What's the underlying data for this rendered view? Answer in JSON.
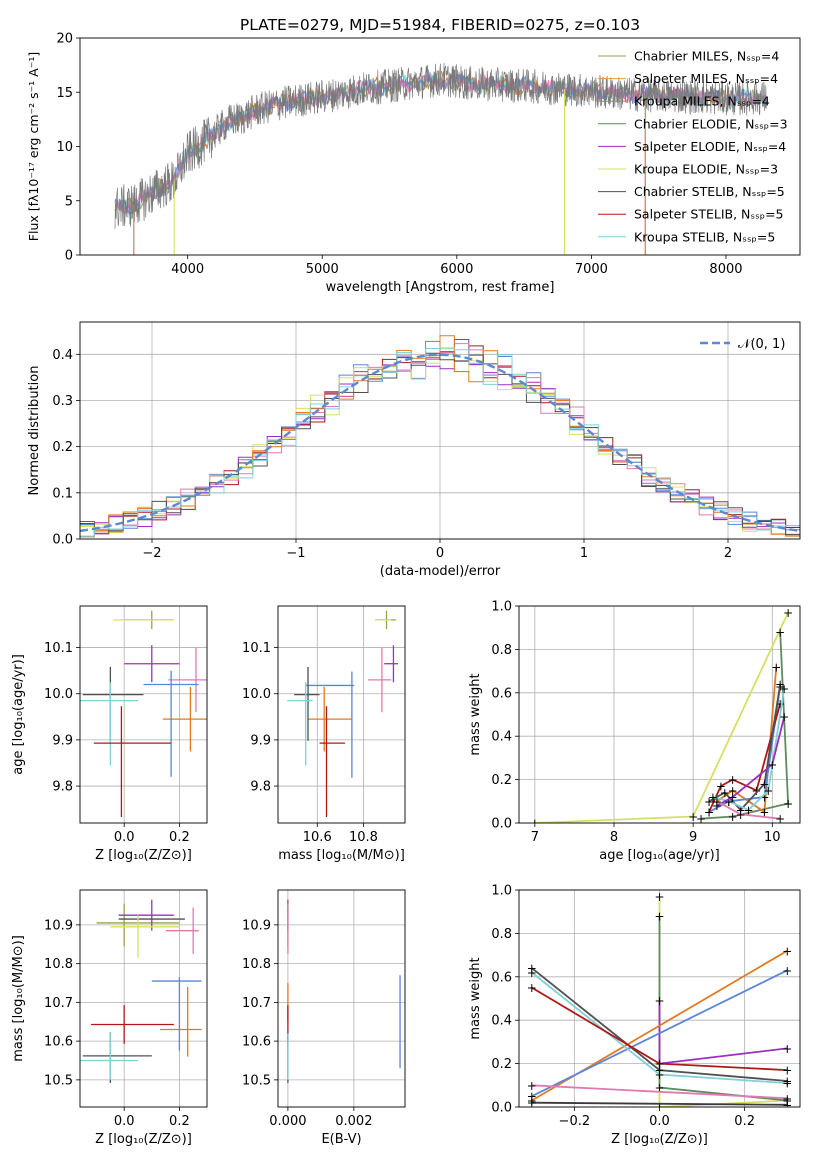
{
  "figure": {
    "title": "PLATE=0279, MJD=51984, FIBERID=0275, z=0.103"
  },
  "colors": {
    "Chabrier MILES": "#9aa24a",
    "Salpeter MILES": "#d6a23a",
    "Kroupa MILES": "#c9792a",
    "Chabrier ELODIE": "#5f8a5f",
    "Salpeter ELODIE": "#9b30c0",
    "Kroupa ELODIE": "#d6e060",
    "Chabrier STELIB": "#505050",
    "Salpeter STELIB": "#b01818",
    "Kroupa STELIB": "#7fd0d8",
    "extra_blue": "#5b86d8",
    "extra_orange": "#e07a20",
    "extra_pink": "#e07ab0",
    "extra_yellowgreen": "#c8e050",
    "normal_curve": "#5b8ad0"
  },
  "chart_data": [
    {
      "id": "spectrum",
      "type": "line",
      "title": "PLATE=0279, MJD=51984, FIBERID=0275, z=0.103",
      "xlabel": "wavelength [Angstrom, rest frame]",
      "ylabel": "Flux [fλ10⁻¹⁷ erg cm⁻² s⁻¹ A⁻¹]",
      "xlim": [
        3200,
        8550
      ],
      "ylim": [
        0,
        20
      ],
      "xticks": [
        "4000",
        "5000",
        "6000",
        "7000",
        "8000"
      ],
      "yticks": [
        "0",
        "5",
        "10",
        "15",
        "20"
      ],
      "legend_placement": "top-right",
      "legend": [
        {
          "label": "Chabrier MILES, Nₛₛₚ=4",
          "color": "#9aa24a"
        },
        {
          "label": "Salpeter MILES, Nₛₛₚ=4",
          "color": "#d6a23a"
        },
        {
          "label": "Kroupa MILES, Nₛₛₚ=4",
          "color": "#c9792a"
        },
        {
          "label": "Chabrier ELODIE, Nₛₛₚ=3",
          "color": "#5f8a5f"
        },
        {
          "label": "Salpeter ELODIE, Nₛₛₚ=4",
          "color": "#9b30c0"
        },
        {
          "label": "Kroupa ELODIE, Nₛₛₚ=3",
          "color": "#d6e060"
        },
        {
          "label": "Chabrier STELIB, Nₛₛₚ=5",
          "color": "#505050"
        },
        {
          "label": "Salpeter STELIB, Nₛₛₚ=5",
          "color": "#b01818"
        },
        {
          "label": "Kroupa STELIB, Nₛₛₚ=5",
          "color": "#7fd0d8"
        }
      ],
      "data_continuum": {
        "x": [
          3450,
          3600,
          3800,
          3900,
          4000,
          4100,
          4200,
          4300,
          4400,
          4500,
          4700,
          4900,
          5100,
          5300,
          5500,
          5700,
          5900,
          6100,
          6300,
          6500,
          6700,
          6900,
          7100,
          7300,
          7500,
          7700,
          7900,
          8100,
          8300
        ],
        "y": [
          4.3,
          4.6,
          6.2,
          6.8,
          9.3,
          10.2,
          11.2,
          12.3,
          12.6,
          13.3,
          14.0,
          14.4,
          14.8,
          15.3,
          15.6,
          15.9,
          16.2,
          15.8,
          15.7,
          15.6,
          15.4,
          15.2,
          15.0,
          14.8,
          14.7,
          14.6,
          14.5,
          14.4,
          14.5
        ]
      }
    },
    {
      "id": "residuals",
      "type": "step",
      "xlabel": "(data-model)/error",
      "ylabel": "Normed distribution",
      "xlim": [
        -2.5,
        2.5
      ],
      "ylim": [
        0,
        0.47
      ],
      "xticks": [
        "−2",
        "−1",
        "0",
        "1",
        "2"
      ],
      "yticks": [
        "0.0",
        "0.1",
        "0.2",
        "0.3",
        "0.4"
      ],
      "legend": [
        {
          "label": "𝒩(0, 1)",
          "color": "#5b8ad0"
        }
      ],
      "legend_placement": "top-right",
      "bin_width": 0.1
    },
    {
      "id": "age-vs-Z",
      "type": "errorbar",
      "xlabel": "Z [log₁₀(Z/Z⊙)]",
      "ylabel": "age  [log₁₀(age/yr)]",
      "xlim": [
        -0.16,
        0.3
      ],
      "ylim": [
        9.72,
        10.19
      ],
      "xticks": [
        "0.0",
        "0.2"
      ],
      "yticks": [
        "9.8",
        "9.9",
        "10.0",
        "10.1"
      ],
      "series": [
        {
          "color": "#9aa24a",
          "x": 0.1,
          "y": 10.16,
          "xerr": [
            0.1,
            0.08
          ],
          "yerr": [
            0.02,
            0.02
          ]
        },
        {
          "color": "#d6e060",
          "x": 0.08,
          "y": 10.16,
          "xerr": [
            0.12,
            0.1
          ],
          "yerr": [
            0.0,
            0.0
          ]
        },
        {
          "color": "#9b30c0",
          "x": 0.1,
          "y": 10.065,
          "xerr": [
            0.1,
            0.1
          ],
          "yerr": [
            0.04,
            0.04
          ]
        },
        {
          "color": "#e07ab0",
          "x": 0.26,
          "y": 10.03,
          "xerr": [
            0.1,
            0.1
          ],
          "yerr": [
            0.07,
            0.07
          ]
        },
        {
          "color": "#e07a20",
          "x": 0.24,
          "y": 9.945,
          "xerr": [
            0.1,
            0.08
          ],
          "yerr": [
            0.07,
            0.07
          ]
        },
        {
          "color": "#5b86d8",
          "x": 0.17,
          "y": 10.02,
          "xerr": [
            0.1,
            0.1
          ],
          "yerr": [
            0.2,
            0.03
          ]
        },
        {
          "color": "#505050",
          "x": -0.05,
          "y": 9.998,
          "xerr": [
            0.1,
            0.12
          ],
          "yerr": [
            0.1,
            0.06
          ]
        },
        {
          "color": "#7fd0d8",
          "x": -0.05,
          "y": 9.985,
          "xerr": [
            0.12,
            0.1
          ],
          "yerr": [
            0.14,
            0.04
          ]
        },
        {
          "color": "#b01818",
          "x": -0.01,
          "y": 9.893,
          "xerr": [
            0.1,
            0.18
          ],
          "yerr": [
            0.16,
            0.08
          ]
        }
      ]
    },
    {
      "id": "age-vs-mass",
      "type": "errorbar",
      "xlabel": "mass [log₁₀(M/M⊙)]",
      "ylabel": "",
      "xlim": [
        10.43,
        10.98
      ],
      "ylim": [
        9.72,
        10.19
      ],
      "xticks": [
        "10.6",
        "10.8"
      ],
      "yticks": [
        "9.8",
        "9.9",
        "10.0",
        "10.1"
      ],
      "series": [
        {
          "color": "#9aa24a",
          "x": 10.9,
          "y": 10.16,
          "xerr": [
            0.05,
            0.04
          ],
          "yerr": [
            0.02,
            0.02
          ]
        },
        {
          "color": "#d6e060",
          "x": 10.89,
          "y": 10.16,
          "xerr": [
            0.04,
            0.03
          ],
          "yerr": [
            0.0,
            0.0
          ]
        },
        {
          "color": "#9b30c0",
          "x": 10.93,
          "y": 10.065,
          "xerr": [
            0.04,
            0.02
          ],
          "yerr": [
            0.04,
            0.04
          ]
        },
        {
          "color": "#e07ab0",
          "x": 10.88,
          "y": 10.03,
          "xerr": [
            0.06,
            0.04
          ],
          "yerr": [
            0.07,
            0.07
          ]
        },
        {
          "color": "#e07a20",
          "x": 10.63,
          "y": 9.945,
          "xerr": [
            0.07,
            0.12
          ],
          "yerr": [
            0.07,
            0.07
          ]
        },
        {
          "color": "#5b86d8",
          "x": 10.75,
          "y": 10.018,
          "xerr": [
            0.2,
            0.01
          ],
          "yerr": [
            0.2,
            0.03
          ]
        },
        {
          "color": "#505050",
          "x": 10.56,
          "y": 9.998,
          "xerr": [
            0.06,
            0.05
          ],
          "yerr": [
            0.1,
            0.06
          ]
        },
        {
          "color": "#7fd0d8",
          "x": 10.55,
          "y": 9.985,
          "xerr": [
            0.08,
            0.03
          ],
          "yerr": [
            0.14,
            0.04
          ]
        },
        {
          "color": "#b01818",
          "x": 10.64,
          "y": 9.893,
          "xerr": [
            0.03,
            0.08
          ],
          "yerr": [
            0.16,
            0.08
          ]
        }
      ]
    },
    {
      "id": "mass-weight-vs-age",
      "type": "line",
      "xlabel": "age  [log₁₀(age/yr)]",
      "ylabel": "mass weight",
      "xlim": [
        6.8,
        10.35
      ],
      "ylim": [
        0,
        1.0
      ],
      "xticks": [
        "7",
        "8",
        "9",
        "10"
      ],
      "yticks": [
        "0.0",
        "0.2",
        "0.4",
        "0.6",
        "0.8",
        "1.0"
      ]
    },
    {
      "id": "mass-vs-Z",
      "type": "errorbar",
      "xlabel": "Z [log₁₀(Z/Z⊙)]",
      "ylabel": "mass [log₁₀(M/M⊙)]",
      "xlim": [
        -0.16,
        0.3
      ],
      "ylim": [
        10.43,
        10.99
      ],
      "xticks": [
        "0.0",
        "0.2"
      ],
      "yticks": [
        "10.5",
        "10.6",
        "10.7",
        "10.8",
        "10.9"
      ],
      "series": [
        {
          "color": "#9aa24a",
          "x": 0.0,
          "y": 10.905,
          "xerr": [
            0.1,
            0.2
          ],
          "yerr": [
            0.06,
            0.05
          ]
        },
        {
          "color": "#9b30c0",
          "x": 0.1,
          "y": 10.925,
          "xerr": [
            0.12,
            0.08
          ],
          "yerr": [
            0.04,
            0.04
          ]
        },
        {
          "color": "#505050",
          "x": 0.1,
          "y": 10.915,
          "xerr": [
            0.12,
            0.12
          ],
          "yerr": [
            0.0,
            0.0
          ]
        },
        {
          "color": "#d6e060",
          "x": 0.05,
          "y": 10.895,
          "xerr": [
            0.1,
            0.15
          ],
          "yerr": [
            0.08,
            0.03
          ]
        },
        {
          "color": "#e07ab0",
          "x": 0.25,
          "y": 10.885,
          "xerr": [
            0.1,
            0.02
          ],
          "yerr": [
            0.06,
            0.06
          ]
        },
        {
          "color": "#5b86d8",
          "x": 0.2,
          "y": 10.755,
          "xerr": [
            0.1,
            0.08
          ],
          "yerr": [
            0.18,
            0.01
          ]
        },
        {
          "color": "#e07a20",
          "x": 0.23,
          "y": 10.63,
          "xerr": [
            0.1,
            0.05
          ],
          "yerr": [
            0.07,
            0.11
          ]
        },
        {
          "color": "#b01818",
          "x": 0.0,
          "y": 10.643,
          "xerr": [
            0.12,
            0.18
          ],
          "yerr": [
            0.05,
            0.05
          ]
        },
        {
          "color": "#505050",
          "x": -0.05,
          "y": 10.562,
          "xerr": [
            0.1,
            0.15
          ],
          "yerr": [
            0.07,
            0.06
          ]
        },
        {
          "color": "#7fd0d8",
          "x": -0.05,
          "y": 10.55,
          "xerr": [
            0.12,
            0.1
          ],
          "yerr": [
            0.05,
            0.07
          ]
        }
      ]
    },
    {
      "id": "mass-vs-EBV",
      "type": "errorbar",
      "xlabel": "E(B-V)",
      "ylabel": "",
      "xlim": [
        -0.0003,
        0.00355
      ],
      "ylim": [
        10.43,
        10.99
      ],
      "xticks": [
        "0.000",
        "0.002"
      ],
      "yticks": [
        "10.5",
        "10.6",
        "10.7",
        "10.8",
        "10.9"
      ],
      "series": [
        {
          "color": "#9b30c0",
          "x": 0.0,
          "y": 10.925,
          "xerr": [
            0,
            0
          ],
          "yerr": [
            0.04,
            0.04
          ]
        },
        {
          "color": "#9aa24a",
          "x": 0.0,
          "y": 10.905,
          "xerr": [
            0,
            0
          ],
          "yerr": [
            0.06,
            0.05
          ]
        },
        {
          "color": "#e07ab0",
          "x": 0.0,
          "y": 10.885,
          "xerr": [
            0,
            0
          ],
          "yerr": [
            0.06,
            0.06
          ]
        },
        {
          "color": "#e07a20",
          "x": 0.0,
          "y": 10.7,
          "xerr": [
            0,
            0
          ],
          "yerr": [
            0.05,
            0.05
          ]
        },
        {
          "color": "#b01818",
          "x": 0.0,
          "y": 10.643,
          "xerr": [
            0,
            0
          ],
          "yerr": [
            0.05,
            0.05
          ]
        },
        {
          "color": "#505050",
          "x": 0.0,
          "y": 10.562,
          "xerr": [
            0,
            0
          ],
          "yerr": [
            0.07,
            0.06
          ]
        },
        {
          "color": "#7fd0d8",
          "x": 0.0,
          "y": 10.55,
          "xerr": [
            0,
            0
          ],
          "yerr": [
            0.05,
            0.07
          ]
        },
        {
          "color": "#5b86d8",
          "x": 0.0034,
          "y": 10.65,
          "xerr": [
            0,
            0
          ],
          "yerr": [
            0.12,
            0.12
          ]
        }
      ]
    },
    {
      "id": "mass-weight-vs-Z",
      "type": "line",
      "xlabel": "Z [log₁₀(Z/Z⊙)]",
      "ylabel": "mass weight",
      "xlim": [
        -0.33,
        0.33
      ],
      "ylim": [
        0,
        1.0
      ],
      "xticks": [
        "−0.2",
        "0.0",
        "0.2"
      ],
      "yticks": [
        "0.0",
        "0.2",
        "0.4",
        "0.6",
        "0.8",
        "1.0"
      ],
      "series": [
        {
          "color": "#d6e060",
          "x": [
            0.0,
            0.0,
            0.3
          ],
          "y": [
            0.97,
            0.0,
            0.03
          ]
        },
        {
          "color": "#5f8a5f",
          "x": [
            0.0,
            0.0,
            0.3
          ],
          "y": [
            0.88,
            0.09,
            0.03
          ]
        },
        {
          "color": "#9b30c0",
          "x": [
            0.0,
            0.0,
            0.3
          ],
          "y": [
            0.49,
            0.2,
            0.27
          ]
        },
        {
          "color": "#e07a20",
          "x": [
            -0.3,
            0.3
          ],
          "y": [
            0.03,
            0.72
          ]
        },
        {
          "color": "#5b86d8",
          "x": [
            -0.3,
            0.3
          ],
          "y": [
            0.05,
            0.63
          ]
        },
        {
          "color": "#505050",
          "x": [
            -0.3,
            0.0,
            0.3
          ],
          "y": [
            0.64,
            0.17,
            0.12
          ]
        },
        {
          "color": "#7fd0d8",
          "x": [
            -0.3,
            0.0,
            0.3
          ],
          "y": [
            0.62,
            0.15,
            0.11
          ]
        },
        {
          "color": "#b01818",
          "x": [
            -0.3,
            0.0,
            0.3
          ],
          "y": [
            0.55,
            0.2,
            0.17
          ]
        },
        {
          "color": "#e07ab0",
          "x": [
            -0.3,
            0.3
          ],
          "y": [
            0.1,
            0.04
          ]
        },
        {
          "color": "#3a3a3a",
          "x": [
            -0.3,
            0.3
          ],
          "y": [
            0.02,
            0.01
          ]
        }
      ]
    }
  ]
}
